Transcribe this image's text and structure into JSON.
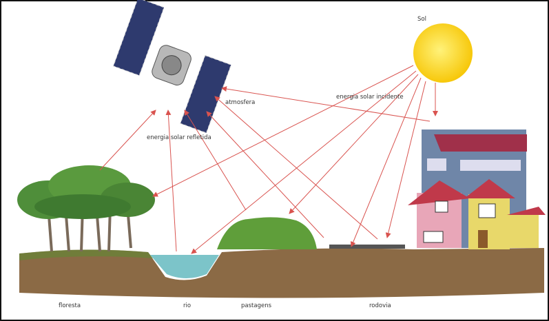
{
  "labels": {
    "sun": "Sol",
    "atmosphere": "atmosfera",
    "incident": "energia solar incidente",
    "reflected": "energia solar refletida",
    "forest": "floresta",
    "river": "rio",
    "pasture": "pastagens",
    "road": "rodovia"
  }
}
